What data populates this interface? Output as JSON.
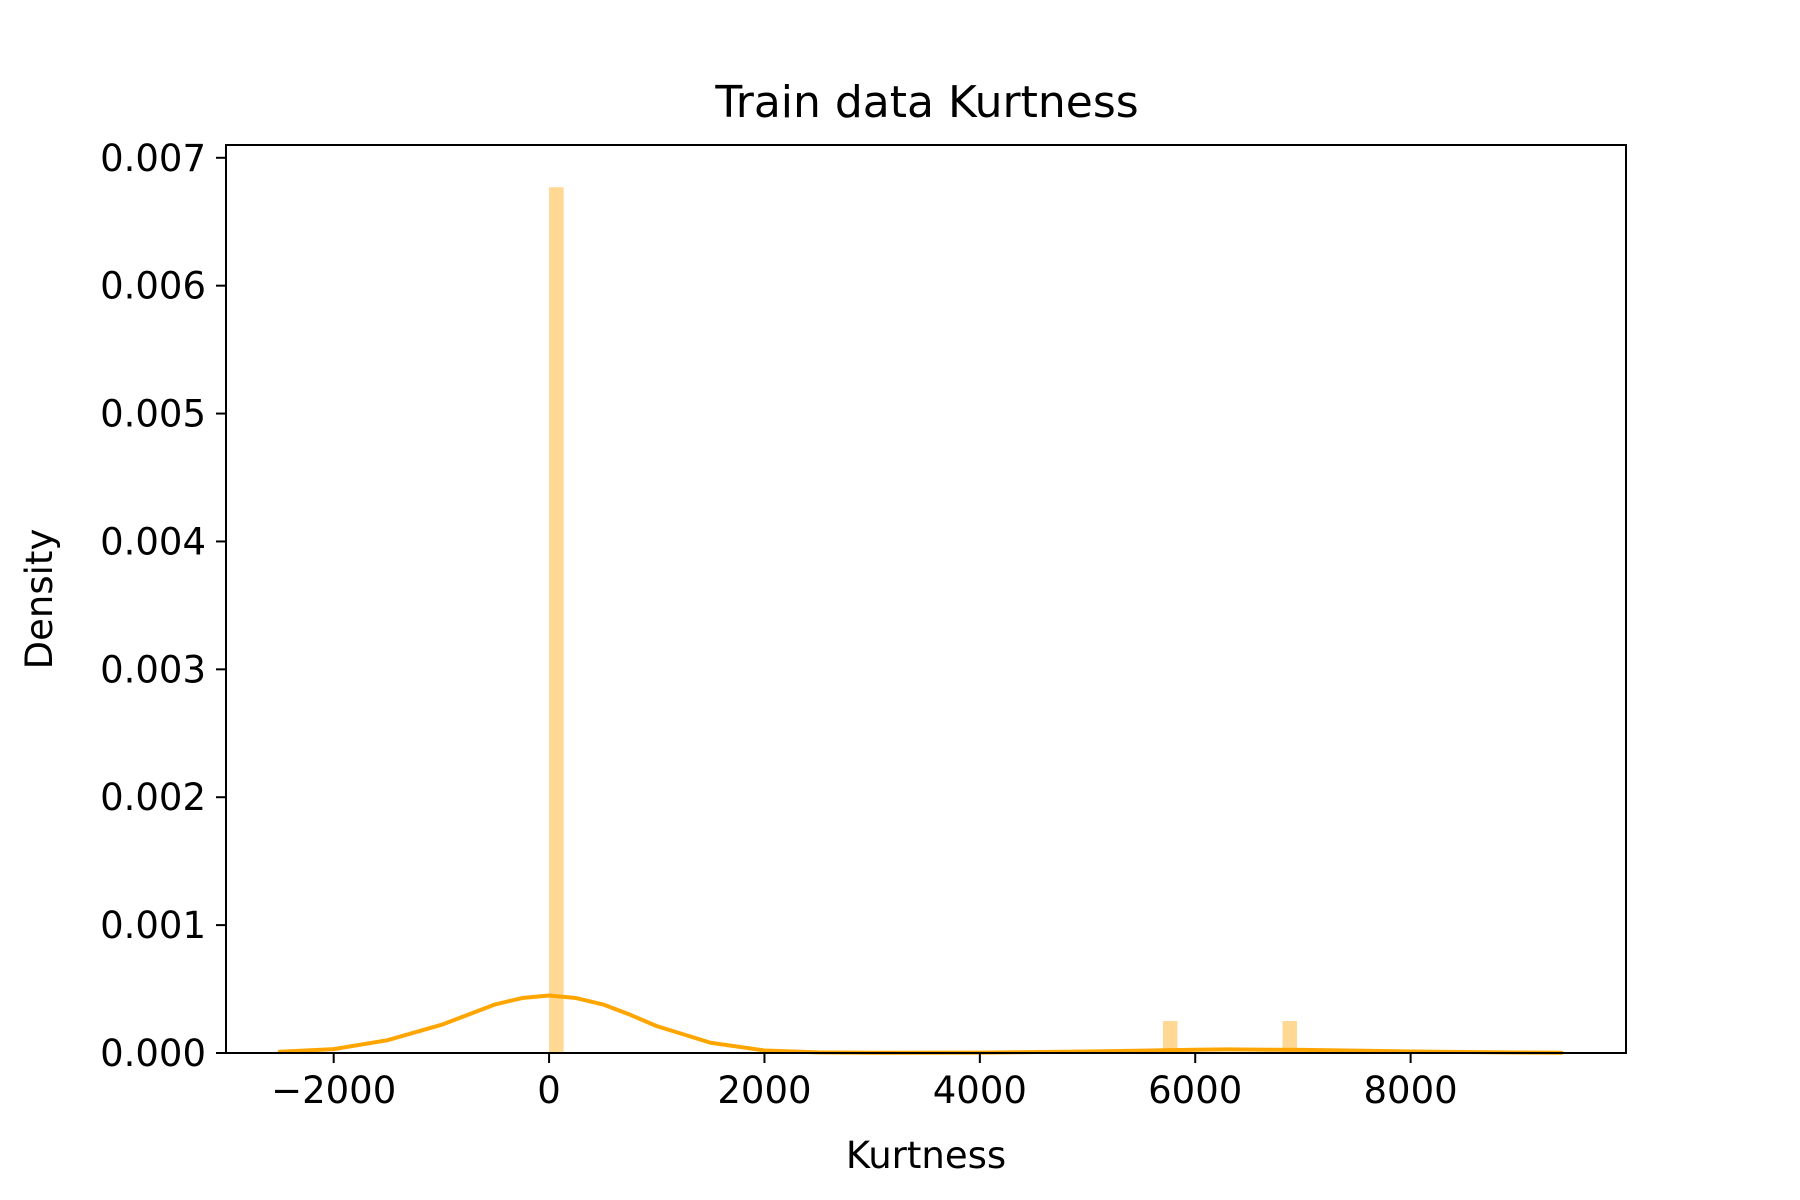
{
  "chart_data": {
    "type": "bar",
    "title": "Train data Kurtness",
    "xlabel": "Kurtness",
    "ylabel": "Density",
    "xlim": [
      -3000,
      10000
    ],
    "ylim": [
      0,
      0.0071
    ],
    "xticks": [
      -2000,
      0,
      2000,
      4000,
      6000,
      8000
    ],
    "xtick_labels": [
      "−2000",
      "0",
      "2000",
      "4000",
      "6000",
      "8000"
    ],
    "yticks": [
      0,
      0.001,
      0.002,
      0.003,
      0.004,
      0.005,
      0.006,
      0.007
    ],
    "ytick_labels": [
      "0.000",
      "0.001",
      "0.002",
      "0.003",
      "0.004",
      "0.005",
      "0.006",
      "0.007"
    ],
    "grid": false,
    "bar_color": "#ffd894",
    "kde_color": "#ffa500",
    "histogram": [
      {
        "x0": 0,
        "x1": 135,
        "density": 0.00677
      },
      {
        "x0": 5700,
        "x1": 5835,
        "density": 0.00025
      },
      {
        "x0": 6810,
        "x1": 6945,
        "density": 0.00025
      }
    ],
    "kde": {
      "x": [
        -2500,
        -2000,
        -1500,
        -1000,
        -750,
        -500,
        -250,
        0,
        250,
        500,
        750,
        1000,
        1500,
        2000,
        2500,
        3000,
        4000,
        5000,
        6000,
        6300,
        7000,
        8000,
        9000,
        9400
      ],
      "y": [
        1e-05,
        3e-05,
        0.0001,
        0.00022,
        0.0003,
        0.00038,
        0.00043,
        0.00045,
        0.00043,
        0.00038,
        0.0003,
        0.00021,
        8e-05,
        2e-05,
        5e-06,
        2e-06,
        3e-06,
        1.2e-05,
        2.5e-05,
        2.8e-05,
        2.4e-05,
        1.2e-05,
        4e-06,
        2e-06
      ]
    }
  }
}
